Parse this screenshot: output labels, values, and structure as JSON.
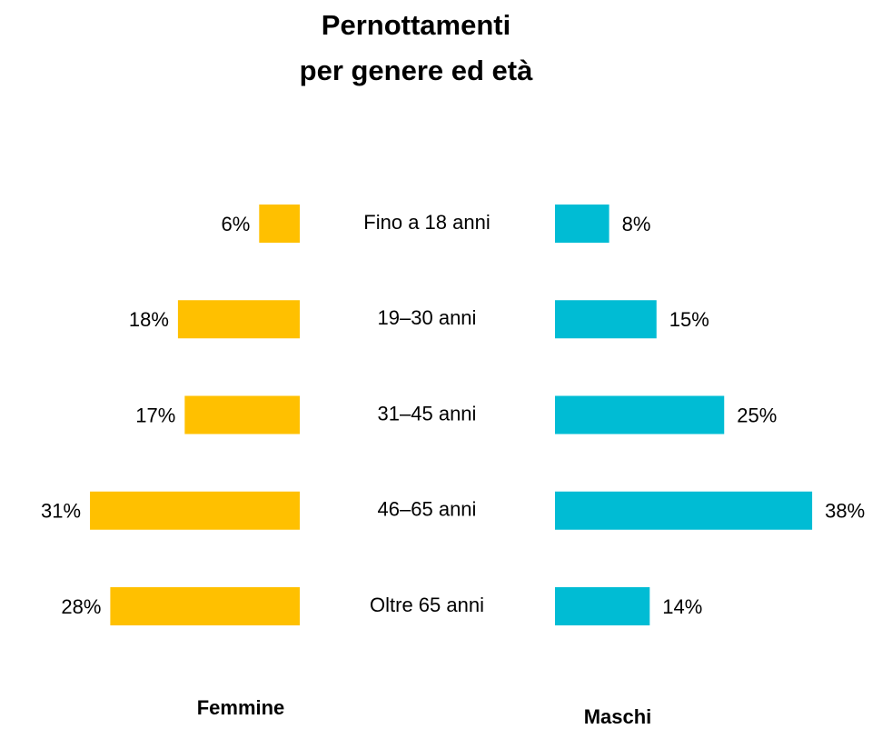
{
  "chart_data": {
    "type": "butterfly_bar",
    "title": [
      "Pernottamenti",
      "per genere ed età"
    ],
    "categories": [
      "Fino a 18 anni",
      "19–30 anni",
      "31–45 anni",
      "46–65 anni",
      "Oltre 65 anni"
    ],
    "series": [
      {
        "name": "Femmine",
        "color": "#FFC000",
        "values": [
          6,
          18,
          17,
          31,
          28
        ],
        "value_labels": [
          "6%",
          "18%",
          "17%",
          "31%",
          "28%"
        ]
      },
      {
        "name": "Maschi",
        "color": "#00BCD4",
        "values": [
          8,
          15,
          25,
          38,
          14
        ],
        "value_labels": [
          "8%",
          "15%",
          "25%",
          "38%",
          "14%"
        ]
      }
    ]
  }
}
